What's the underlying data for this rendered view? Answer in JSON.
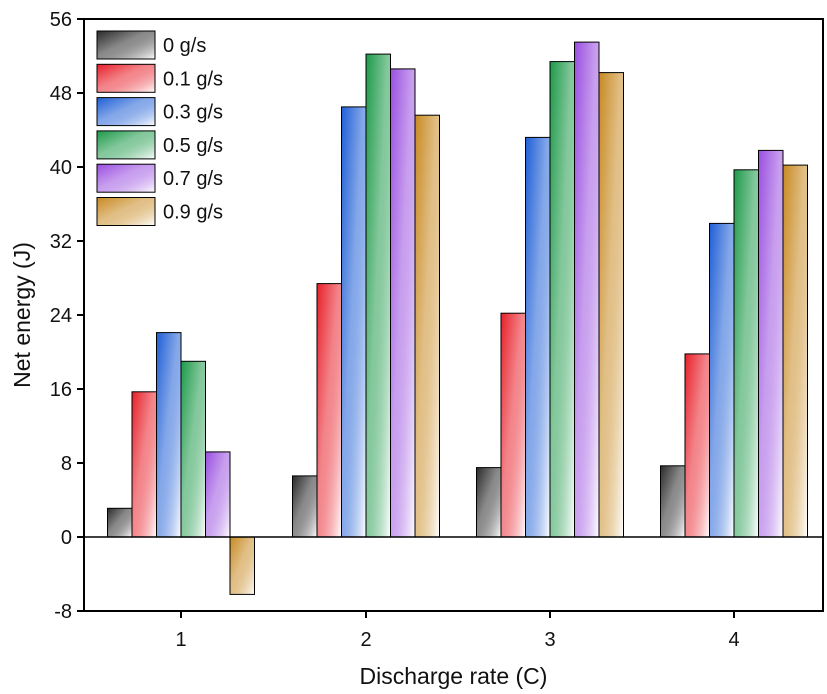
{
  "chart_data": {
    "type": "bar",
    "xlabel": "Discharge rate (C)",
    "ylabel": "Net energy (J)",
    "categories": [
      "1",
      "2",
      "3",
      "4"
    ],
    "ylim": [
      -8,
      56
    ],
    "yticks": [
      -8,
      0,
      8,
      16,
      24,
      32,
      40,
      48,
      56
    ],
    "legend_position": "top-left",
    "grid": false,
    "series": [
      {
        "name": "0 g/s",
        "color": "#2a2a2a",
        "values": [
          3.1,
          6.6,
          7.5,
          7.7
        ]
      },
      {
        "name": "0.1 g/s",
        "color": "#e8202a",
        "values": [
          15.7,
          27.4,
          24.2,
          19.8
        ]
      },
      {
        "name": "0.3 g/s",
        "color": "#1f5fd6",
        "values": [
          22.1,
          46.5,
          43.2,
          33.9
        ]
      },
      {
        "name": "0.5 g/s",
        "color": "#1e9a4a",
        "values": [
          19.0,
          52.2,
          51.4,
          39.7
        ]
      },
      {
        "name": "0.7 g/s",
        "color": "#9a4fe0",
        "values": [
          9.2,
          50.6,
          53.5,
          41.8
        ]
      },
      {
        "name": "0.9 g/s",
        "color": "#c88a22",
        "values": [
          -6.2,
          45.6,
          50.2,
          40.2
        ]
      }
    ]
  }
}
